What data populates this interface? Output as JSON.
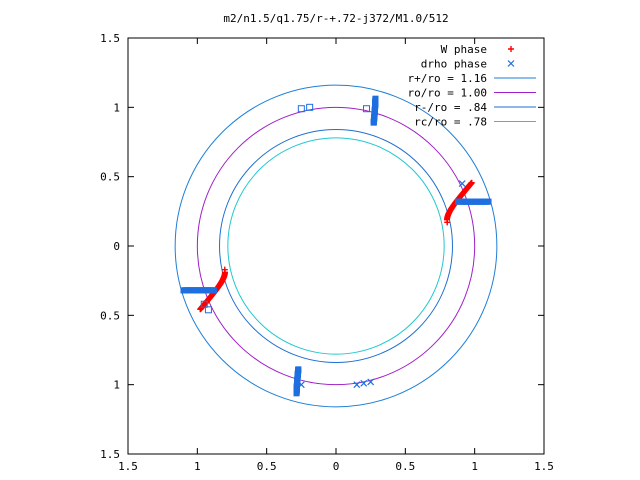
{
  "chart_data": {
    "type": "scatter",
    "title": "m2/n1.5/q1.75/r-+.72-j372/M1.0/512",
    "xlabel": "",
    "ylabel": "",
    "xlim": [
      -1.5,
      1.5
    ],
    "ylim": [
      -1.5,
      1.5
    ],
    "xticks": [
      -1.5,
      -1,
      -0.5,
      0,
      0.5,
      1,
      1.5
    ],
    "yticks": [
      -1.5,
      -1,
      -0.5,
      0,
      0.5,
      1,
      1.5
    ],
    "xtick_labels": [
      "1.5",
      "1",
      "0.5",
      "0",
      "0.5",
      "1",
      "1.5"
    ],
    "ytick_labels": [
      "1.5",
      "1",
      "0.5",
      "0",
      "0.5",
      "1",
      "1.5"
    ],
    "grid": false,
    "legend_position": "top-right",
    "series": [
      {
        "name": "W phase",
        "kind": "points",
        "marker": "plus",
        "color": "#ff0000",
        "arcs": [
          {
            "r_start": 0.82,
            "r_end": 1.08,
            "theta_start_deg": 12,
            "theta_end_deg": 25
          },
          {
            "r_start": 0.82,
            "r_end": 1.08,
            "theta_start_deg": 192,
            "theta_end_deg": 205
          }
        ]
      },
      {
        "name": "drho phase",
        "kind": "points",
        "marker": "cross",
        "color": "#1e6fe0",
        "arcs": [
          {
            "r_start": 0.93,
            "r_end": 1.1,
            "theta_start_deg": 73,
            "theta_end_deg": 75
          },
          {
            "r_start": 0.93,
            "r_end": 1.1,
            "theta_start_deg": 253,
            "theta_end_deg": 255
          }
        ],
        "bars": [
          {
            "x_start": 0.88,
            "x_end": 1.1,
            "y": 0.32
          },
          {
            "x_start": -1.1,
            "x_end": -0.88,
            "y": -0.32
          }
        ],
        "crosses": [
          [
            0.91,
            0.45
          ],
          [
            -0.25,
            -1.0
          ],
          [
            0.15,
            -1.0
          ],
          [
            0.2,
            -0.99
          ],
          [
            0.25,
            -0.98
          ]
        ],
        "squares": [
          [
            -0.25,
            0.99
          ],
          [
            -0.19,
            1.0
          ],
          [
            0.22,
            0.99
          ],
          [
            -0.95,
            -0.42
          ],
          [
            -0.92,
            -0.46
          ]
        ]
      },
      {
        "name": "r+/ro = 1.16",
        "kind": "circle",
        "r": 1.16,
        "color": "#1e7fd6"
      },
      {
        "name": "ro/ro = 1.00",
        "kind": "circle",
        "r": 1.0,
        "color": "#a020c8"
      },
      {
        "name": "r-/ro = .84",
        "kind": "circle",
        "r": 0.84,
        "color": "#1e6fcf"
      },
      {
        "name": "rc/ro = .78",
        "kind": "circle",
        "r": 0.78,
        "color": "#20c8d0"
      }
    ]
  }
}
